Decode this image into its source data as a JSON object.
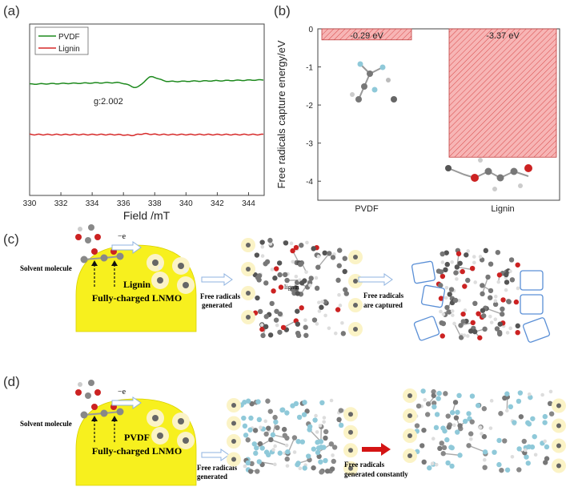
{
  "labels": {
    "a": "(a)",
    "b": "(b)",
    "c": "(c)",
    "d": "(d)"
  },
  "chart_data": [
    {
      "type": "line",
      "xlabel": "Field /mT",
      "ylabel": "",
      "xlim": [
        330,
        345
      ],
      "xticks": [
        "330",
        "332",
        "334",
        "336",
        "338",
        "340",
        "342",
        "344"
      ],
      "legend": "top-left",
      "annotation": "g:2.002",
      "series": [
        {
          "name": "PVDF",
          "color": "#1e8a1e"
        },
        {
          "name": "Lignin",
          "color": "#d62828"
        }
      ]
    },
    {
      "type": "bar",
      "ylabel": "Free radicals capture energy/eV",
      "ylim": [
        -4.5,
        0
      ],
      "yticks": [
        "0",
        "-1",
        "-2",
        "-3",
        "-4"
      ],
      "categories": [
        "PVDF",
        "Lignin"
      ],
      "values": [
        -0.29,
        -3.37
      ],
      "value_labels": [
        "-0.29 eV",
        "-3.37 eV"
      ],
      "bar_color": "#f4a3a3"
    }
  ],
  "schemes": {
    "c": {
      "solvent": "Solvent molecule",
      "minus_e": "−e",
      "electrode_line1": "Lignin",
      "electrode_line2": "Fully-charged LNMO",
      "step1": [
        "Free radicals",
        "generated"
      ],
      "middle_label": "lignin",
      "step2": [
        "Free radicals",
        "are captured"
      ]
    },
    "d": {
      "solvent": "Solvent molecule",
      "minus_e": "−e",
      "electrode_line1": "PVDF",
      "electrode_line2": "Fully-charged LNMO",
      "step1": [
        "Free radicals",
        "generated"
      ],
      "step2": [
        "Free radicals",
        "generated constantly"
      ]
    }
  }
}
